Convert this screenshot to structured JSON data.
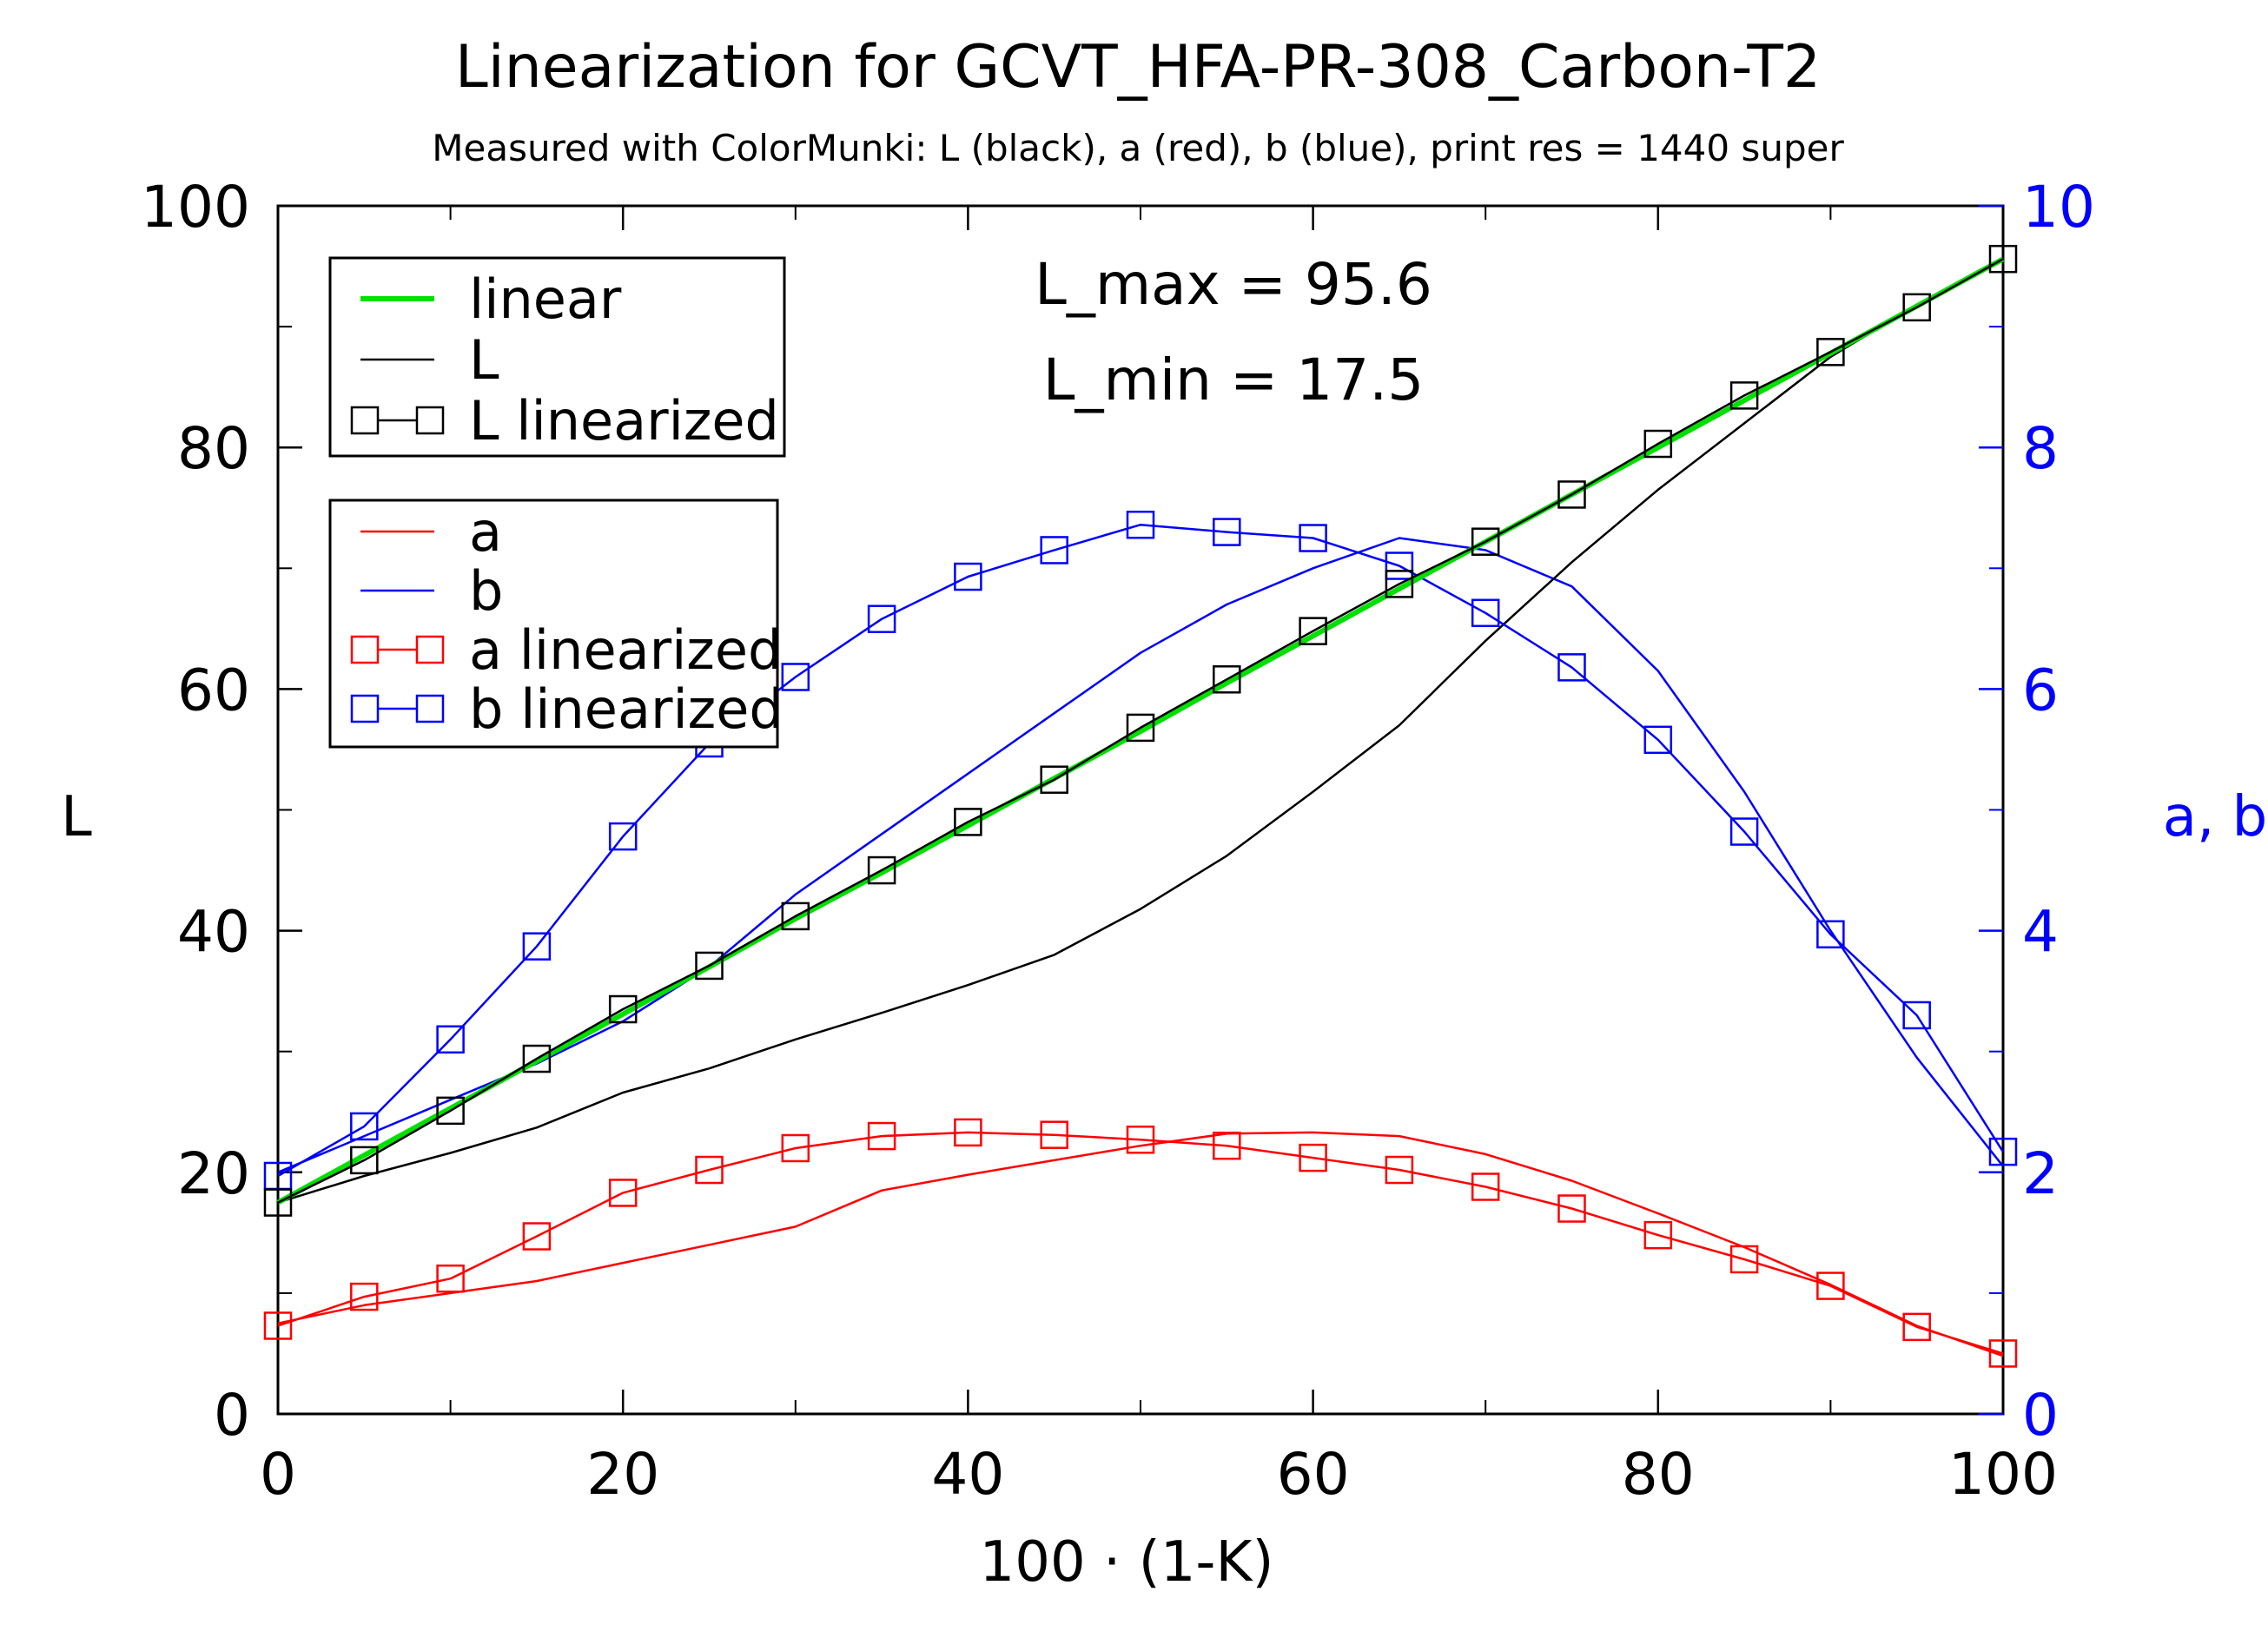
{
  "chart_data": {
    "type": "line",
    "title": "Linearization for GCVT_HFA-PR-308_Carbon-T2",
    "subtitle": "Measured with ColorMunki: L (black), a (red), b (blue), print res = 1440 super",
    "xlabel": "100 · (1-K)",
    "ylabel": "L",
    "y2label": "a, b",
    "xlim": [
      0,
      100
    ],
    "ylim": [
      0,
      100
    ],
    "y2lim": [
      0,
      10
    ],
    "x_ticks": [
      "0",
      "20",
      "40",
      "60",
      "80",
      "100"
    ],
    "y_ticks": [
      "0",
      "20",
      "40",
      "60",
      "80",
      "100"
    ],
    "y2_ticks": [
      "0",
      "2",
      "4",
      "6",
      "8",
      "10"
    ],
    "grid": false,
    "annotations": [
      "L_max = 95.6",
      "L_min = 17.5"
    ],
    "legend_L": {
      "placement": "top-left",
      "entries": [
        "linear",
        "L",
        "L linearized"
      ]
    },
    "legend_ab": {
      "placement": "upper-left",
      "entries": [
        "a",
        "b",
        "a linearized",
        "b linearized"
      ]
    },
    "colors": {
      "linear": "#00e000",
      "L": "#000000",
      "a": "#ff0000",
      "b": "#0000ff",
      "axis": "#000000",
      "right_axis": "#0000ff"
    },
    "x": [
      0,
      5,
      10,
      15,
      20,
      25,
      30,
      35,
      40,
      45,
      50,
      55,
      60,
      65,
      70,
      75,
      80,
      85,
      90,
      95,
      100
    ],
    "series": [
      {
        "name": "linear",
        "axis": "left",
        "marker": false,
        "color": "#00e000",
        "values": [
          17.5,
          21.4,
          25.3,
          29.2,
          33.1,
          37.0,
          41.0,
          44.8,
          48.7,
          52.6,
          56.5,
          60.5,
          64.4,
          68.3,
          72.2,
          76.1,
          80.0,
          83.9,
          87.8,
          91.7,
          95.6
        ]
      },
      {
        "name": "L",
        "axis": "left",
        "marker": false,
        "color": "#000000",
        "values": [
          17.5,
          19.7,
          21.6,
          23.7,
          26.6,
          28.6,
          31.0,
          33.2,
          35.5,
          38.0,
          41.8,
          46.2,
          51.5,
          57.0,
          64.0,
          70.5,
          76.5,
          82.0,
          87.5,
          91.8,
          95.6
        ]
      },
      {
        "name": "L linearized",
        "axis": "left",
        "marker": true,
        "color": "#000000",
        "values": [
          17.5,
          21.0,
          25.1,
          29.4,
          33.5,
          37.1,
          41.2,
          45.0,
          49.0,
          52.5,
          56.8,
          60.8,
          64.8,
          68.7,
          72.2,
          76.1,
          80.3,
          84.3,
          87.9,
          91.6,
          95.6
        ]
      },
      {
        "name": "a",
        "axis": "right",
        "marker": false,
        "color": "#ff0000",
        "values": [
          0.75,
          0.9,
          1.0,
          1.1,
          1.25,
          1.4,
          1.55,
          1.85,
          1.98,
          2.1,
          2.22,
          2.32,
          2.33,
          2.3,
          2.15,
          1.93,
          1.66,
          1.38,
          1.07,
          0.73,
          0.48
        ]
      },
      {
        "name": "b",
        "axis": "right",
        "marker": false,
        "color": "#0000ff",
        "values": [
          2.0,
          2.3,
          2.6,
          2.9,
          3.25,
          3.7,
          4.3,
          4.8,
          5.3,
          5.8,
          6.3,
          6.7,
          7.0,
          7.25,
          7.15,
          6.85,
          6.15,
          5.15,
          4.0,
          2.95,
          2.05
        ]
      },
      {
        "name": "a linearized",
        "axis": "right",
        "marker": true,
        "color": "#ff0000",
        "values": [
          0.73,
          0.97,
          1.12,
          1.47,
          1.83,
          2.02,
          2.2,
          2.3,
          2.33,
          2.31,
          2.27,
          2.22,
          2.12,
          2.02,
          1.88,
          1.7,
          1.48,
          1.28,
          1.06,
          0.72,
          0.5
        ]
      },
      {
        "name": "b linearized",
        "axis": "right",
        "marker": true,
        "color": "#0000ff",
        "values": [
          1.97,
          2.38,
          3.1,
          3.87,
          4.78,
          5.55,
          6.1,
          6.58,
          6.93,
          7.15,
          7.36,
          7.3,
          7.25,
          7.02,
          6.63,
          6.18,
          5.58,
          4.82,
          3.97,
          3.3,
          2.17
        ]
      }
    ]
  }
}
